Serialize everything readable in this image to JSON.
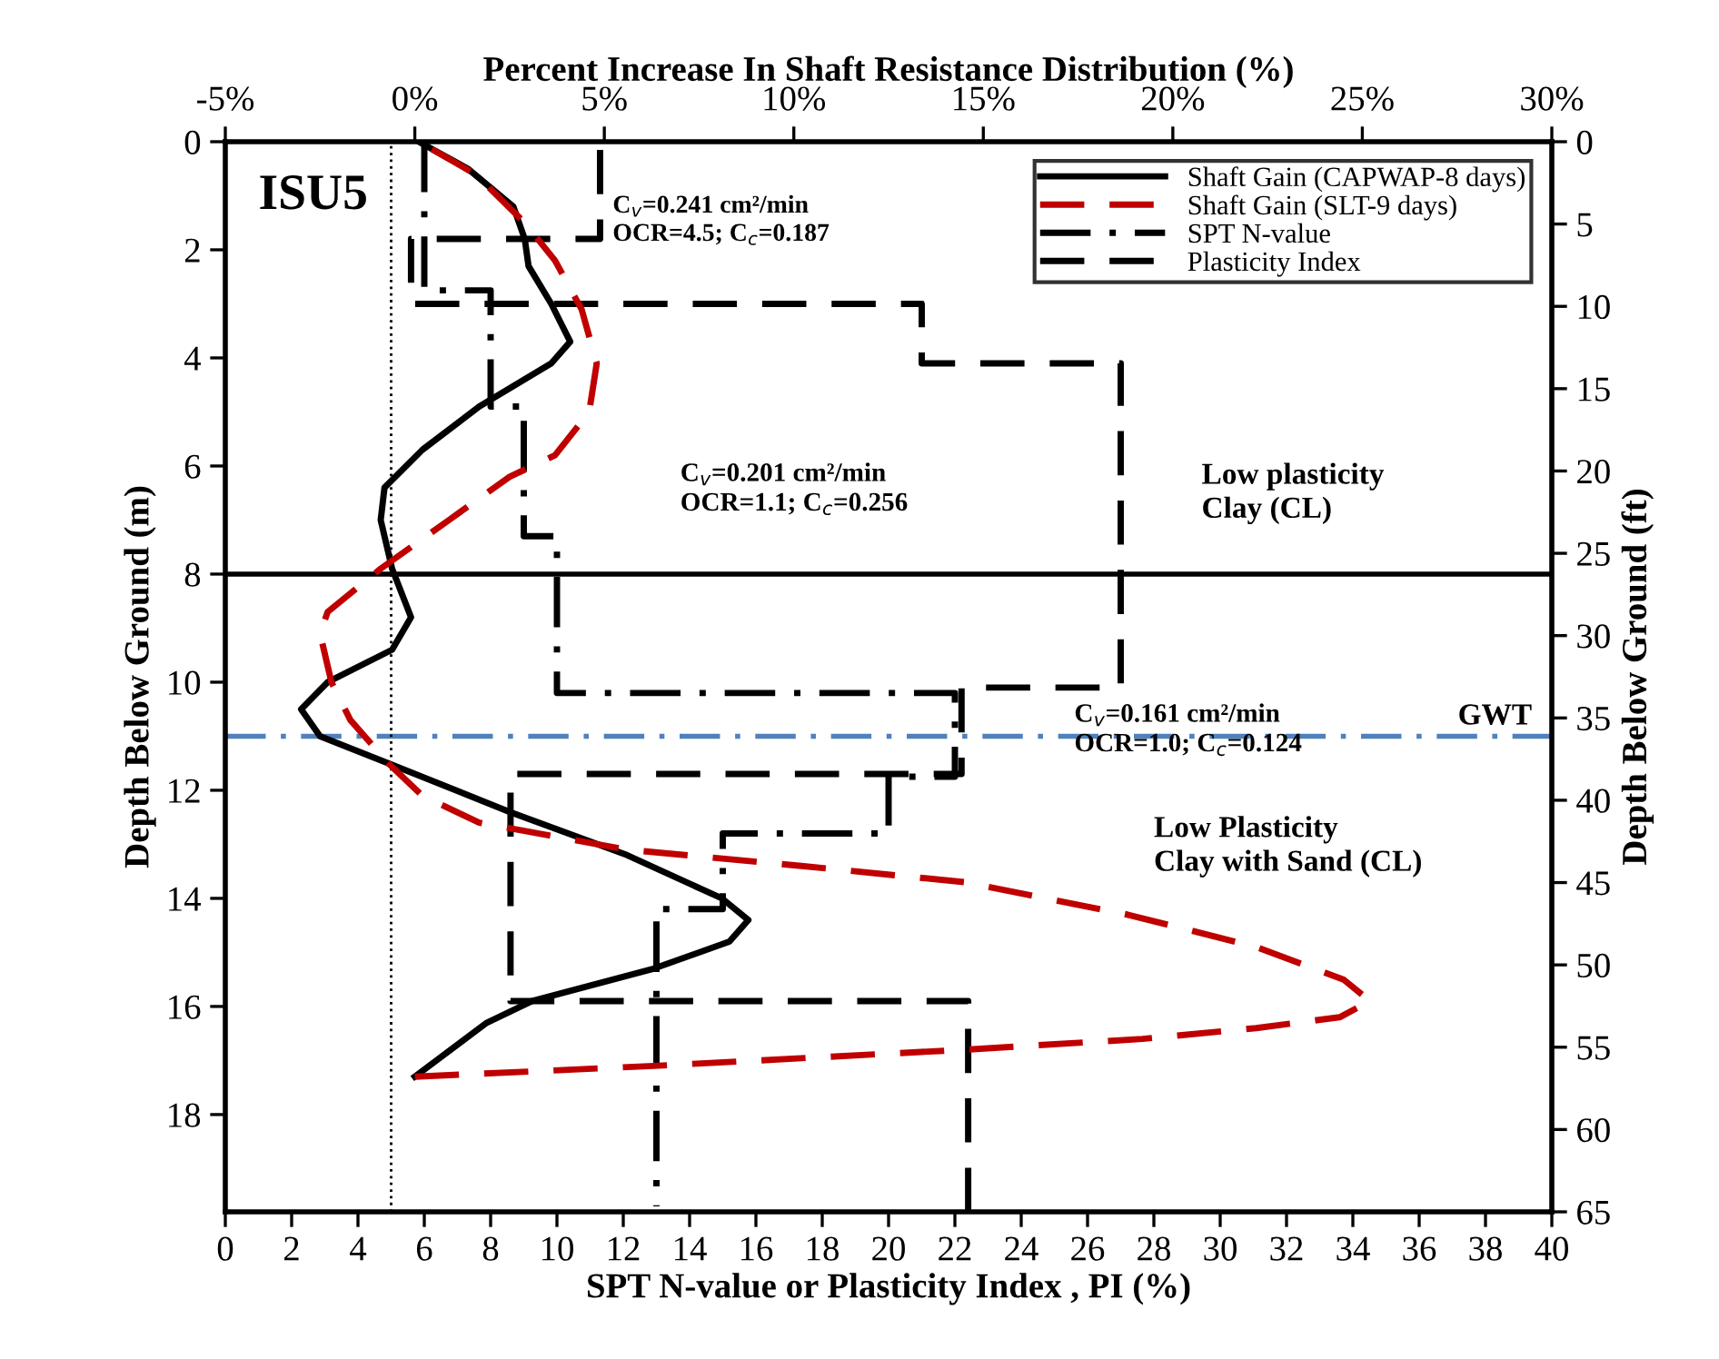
{
  "chart_data": {
    "type": "line",
    "xlabel": "SPT N-value or Plasticity Index , PI (%)",
    "x2label": "Percent Increase In Shaft Resistance Distribution (%)",
    "ylabel": "Depth Below Ground (m)",
    "y2label": "Depth Below Ground (ft)",
    "xlim": [
      0,
      40
    ],
    "xticks": [
      0,
      2,
      4,
      6,
      8,
      10,
      12,
      14,
      16,
      18,
      20,
      22,
      24,
      26,
      28,
      30,
      32,
      34,
      36,
      38,
      40
    ],
    "x2lim": [
      -5,
      30
    ],
    "x2ticks": [
      {
        "value": -5,
        "label": "-5%"
      },
      {
        "value": 0,
        "label": "0%"
      },
      {
        "value": 5,
        "label": "5%"
      },
      {
        "value": 10,
        "label": "10%"
      },
      {
        "value": 15,
        "label": "15%"
      },
      {
        "value": 20,
        "label": "20%"
      },
      {
        "value": 25,
        "label": "25%"
      },
      {
        "value": 30,
        "label": "30%"
      }
    ],
    "ylim": [
      19.8,
      0
    ],
    "yticks": [
      0,
      2,
      4,
      6,
      8,
      10,
      12,
      14,
      16,
      18
    ],
    "y2lim": [
      65,
      0
    ],
    "y2ticks": [
      0,
      5,
      10,
      15,
      20,
      25,
      30,
      35,
      40,
      45,
      50,
      55,
      60,
      65
    ],
    "grid": false,
    "marker": "none",
    "legend": "top right",
    "series": [
      {
        "name": "Shaft Gain (CAPWAP-8 days)",
        "color": "#000000",
        "line_style": "solid",
        "axis": "x2",
        "x": [
          0.1,
          1.4,
          2.6,
          2.9,
          3.0,
          3.6,
          4.1,
          3.6,
          1.7,
          0.2,
          -0.8,
          -0.9,
          -0.6,
          -0.1,
          -0.6,
          -2.3,
          -3.0,
          -2.5,
          -0.7,
          2.5,
          5.6,
          8.1,
          8.8,
          8.3,
          6.3,
          3.1,
          1.9,
          0
        ],
        "values": [
          0,
          0.5,
          1.2,
          1.8,
          2.3,
          3.0,
          3.7,
          4.1,
          4.9,
          5.7,
          6.4,
          7.0,
          7.9,
          8.8,
          9.4,
          10.0,
          10.5,
          11.0,
          11.5,
          12.4,
          13.2,
          14.0,
          14.4,
          14.8,
          15.3,
          15.9,
          16.3,
          17.3
        ]
      },
      {
        "name": "Shaft Gain (SLT-9 days)",
        "color": "#c00000",
        "line_style": "dashed",
        "axis": "x2",
        "x": [
          0.1,
          1.6,
          2.9,
          3.7,
          4.4,
          4.8,
          4.6,
          3.7,
          2.5,
          0.9,
          -0.9,
          -2.3,
          -2.5,
          -2.2,
          -1.7,
          -0.7,
          0.2,
          1.7,
          5.6,
          10.2,
          14.5,
          18.8,
          22.2,
          24.5,
          25.2,
          24.4,
          22.2,
          19.2,
          14.5,
          6.3,
          0
        ],
        "values": [
          0,
          0.6,
          1.5,
          2.2,
          3.1,
          4.1,
          5.0,
          5.8,
          6.2,
          7.0,
          7.9,
          8.7,
          9.1,
          10.0,
          10.7,
          11.5,
          12.1,
          12.6,
          13.1,
          13.4,
          13.7,
          14.3,
          14.9,
          15.5,
          15.9,
          16.2,
          16.4,
          16.6,
          16.8,
          17.1,
          17.3
        ]
      },
      {
        "name": "SPT N-value",
        "color": "#000000",
        "line_style": "dashdot",
        "x": [
          6,
          6,
          8,
          8,
          9,
          9,
          10,
          10,
          22,
          22,
          20,
          20,
          15,
          15,
          13,
          13
        ],
        "values": [
          0,
          2.75,
          2.75,
          4.9,
          4.9,
          7.3,
          7.3,
          10.2,
          10.2,
          11.75,
          11.75,
          12.8,
          12.8,
          14.2,
          14.2,
          19.7
        ]
      },
      {
        "name": "Plasticity Index",
        "color": "#000000",
        "line_style": "dashed",
        "x": [
          11.3,
          11.3,
          5.6,
          5.6,
          21,
          21,
          27,
          27,
          22.2,
          22.2,
          8.6,
          8.6,
          22.4,
          22.4
        ],
        "values": [
          0,
          1.8,
          1.8,
          3.0,
          3.0,
          4.1,
          4.1,
          10.1,
          10.1,
          11.7,
          11.7,
          15.9,
          15.9,
          19.8
        ]
      }
    ],
    "ref_lines": [
      {
        "axis": "y",
        "value": 8,
        "color": "#000000",
        "line_style": "solid"
      },
      {
        "axis": "y",
        "value": 11,
        "label": "GWT",
        "color": "#4f81bd",
        "line_style": "dashdot"
      },
      {
        "axis": "x",
        "value": 5,
        "color": "#000000",
        "line_style": "dotted"
      }
    ],
    "annotations": [
      "ISU5",
      "C$_{v}$=0.241 cm²/min\nOCR=4.5; C$_{c}$=0.187",
      "C$_{v}$=0.201 cm²/min\nOCR=1.1; C$_{c}$=0.256",
      "Low plasticity\nClay (CL)",
      "C$_{v}$=0.161 cm²/min\nOCR=1.0; C$_{c}$=0.124",
      "Low Plasticity\nClay with Sand (CL)"
    ]
  }
}
